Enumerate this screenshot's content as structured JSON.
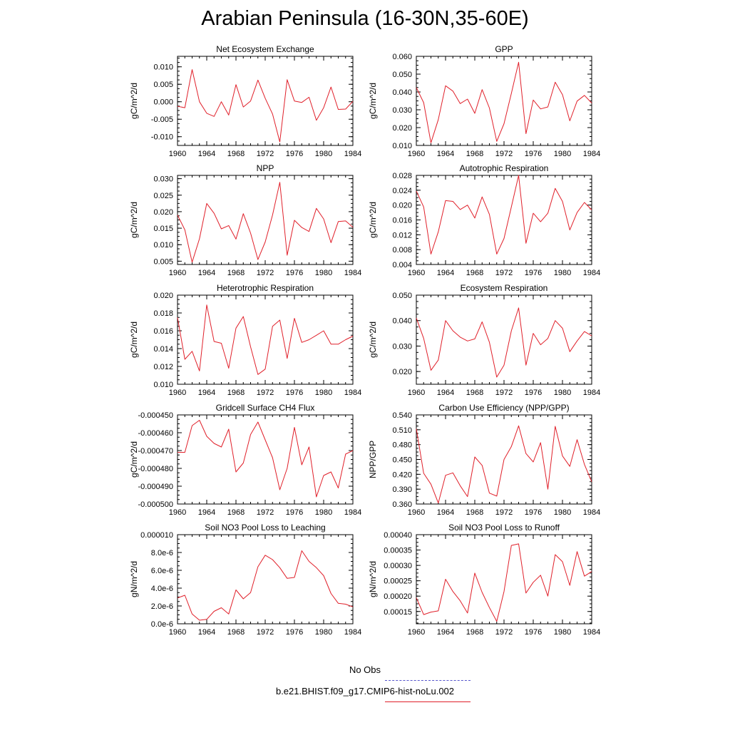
{
  "title": "Arabian Peninsula (16-30N,35-60E)",
  "x_tick_labels": [
    "1960",
    "1964",
    "1968",
    "1972",
    "1976",
    "1980",
    "1984"
  ],
  "legend": {
    "entries": [
      {
        "label": "No Obs",
        "color": "#5555cc",
        "style": "dashed"
      },
      {
        "label": "b.e21.BHIST.f09_g17.CMIP6-hist-noLu.002",
        "color": "#e0202a",
        "style": "solid"
      }
    ]
  },
  "chart_data": [
    {
      "type": "line",
      "title": "Net Ecosystem Exchange",
      "ylabel": "gC/m^2/d",
      "xlim": [
        1960,
        1984
      ],
      "ylim": [
        -0.0125,
        0.013
      ],
      "yticks": [
        -0.01,
        -0.005,
        0.0,
        0.005,
        0.01
      ],
      "ytick_labels": [
        "-0.010",
        "-0.005",
        "0.000",
        "0.005",
        "0.010"
      ],
      "series": [
        {
          "color": "#e0202a",
          "x": [
            1960,
            1961,
            1962,
            1963,
            1964,
            1965,
            1966,
            1967,
            1968,
            1969,
            1970,
            1971,
            1972,
            1973,
            1974,
            1975,
            1976,
            1977,
            1978,
            1979,
            1980,
            1981,
            1982,
            1983,
            1984
          ],
          "y": [
            -0.0013,
            -0.0017,
            0.0092,
            0.0,
            -0.0033,
            -0.0042,
            0.0,
            -0.0038,
            0.0049,
            -0.0015,
            0.0002,
            0.0062,
            0.001,
            -0.0035,
            -0.0115,
            0.0063,
            0.0002,
            -0.0002,
            0.0013,
            -0.0053,
            -0.0017,
            0.0042,
            -0.0022,
            -0.0021,
            0.0001
          ]
        }
      ]
    },
    {
      "type": "line",
      "title": "GPP",
      "ylabel": "gC/m^2/d",
      "xlim": [
        1960,
        1984
      ],
      "ylim": [
        0.01,
        0.06
      ],
      "yticks": [
        0.01,
        0.02,
        0.03,
        0.04,
        0.05,
        0.06
      ],
      "ytick_labels": [
        "0.010",
        "0.020",
        "0.030",
        "0.040",
        "0.050",
        "0.060"
      ],
      "series": [
        {
          "color": "#e0202a",
          "x": [
            1960,
            1961,
            1962,
            1963,
            1964,
            1965,
            1966,
            1967,
            1968,
            1969,
            1970,
            1971,
            1972,
            1973,
            1974,
            1975,
            1976,
            1977,
            1978,
            1979,
            1980,
            1981,
            1982,
            1983,
            1984
          ],
          "y": [
            0.0425,
            0.034,
            0.0115,
            0.0245,
            0.0435,
            0.0405,
            0.0335,
            0.036,
            0.028,
            0.0413,
            0.031,
            0.0123,
            0.0222,
            0.0392,
            0.0567,
            0.0166,
            0.0355,
            0.0305,
            0.0316,
            0.0455,
            0.0385,
            0.0238,
            0.0349,
            0.0381,
            0.0338
          ]
        }
      ]
    },
    {
      "type": "line",
      "title": "NPP",
      "ylabel": "gC/m^2/d",
      "xlim": [
        1960,
        1984
      ],
      "ylim": [
        0.004,
        0.031
      ],
      "yticks": [
        0.005,
        0.01,
        0.015,
        0.02,
        0.025,
        0.03
      ],
      "ytick_labels": [
        "0.005",
        "0.010",
        "0.015",
        "0.020",
        "0.025",
        "0.030"
      ],
      "series": [
        {
          "color": "#e0202a",
          "x": [
            1960,
            1961,
            1962,
            1963,
            1964,
            1965,
            1966,
            1967,
            1968,
            1969,
            1970,
            1971,
            1972,
            1973,
            1974,
            1975,
            1976,
            1977,
            1978,
            1979,
            1980,
            1981,
            1982,
            1983,
            1984
          ],
          "y": [
            0.019,
            0.0145,
            0.0047,
            0.0118,
            0.0225,
            0.0195,
            0.0148,
            0.0158,
            0.0117,
            0.0194,
            0.0135,
            0.0055,
            0.0108,
            0.019,
            0.0289,
            0.0068,
            0.0174,
            0.0152,
            0.014,
            0.021,
            0.0178,
            0.0106,
            0.017,
            0.0172,
            0.0153
          ]
        }
      ]
    },
    {
      "type": "line",
      "title": "Autotrophic Respiration",
      "ylabel": "gC/m^2/d",
      "xlim": [
        1960,
        1984
      ],
      "ylim": [
        0.004,
        0.028
      ],
      "yticks": [
        0.004,
        0.008,
        0.012,
        0.016,
        0.02,
        0.024,
        0.028
      ],
      "ytick_labels": [
        "0.004",
        "0.008",
        "0.012",
        "0.016",
        "0.020",
        "0.024",
        "0.028"
      ],
      "series": [
        {
          "color": "#e0202a",
          "x": [
            1960,
            1961,
            1962,
            1963,
            1964,
            1965,
            1966,
            1967,
            1968,
            1969,
            1970,
            1971,
            1972,
            1973,
            1974,
            1975,
            1976,
            1977,
            1978,
            1979,
            1980,
            1981,
            1982,
            1983,
            1984
          ],
          "y": [
            0.0238,
            0.0195,
            0.0068,
            0.0128,
            0.0212,
            0.021,
            0.0188,
            0.02,
            0.0165,
            0.0222,
            0.0175,
            0.0068,
            0.011,
            0.0195,
            0.028,
            0.0097,
            0.0178,
            0.0155,
            0.0178,
            0.0245,
            0.021,
            0.0133,
            0.018,
            0.0207,
            0.0187
          ]
        }
      ]
    },
    {
      "type": "line",
      "title": "Heterotrophic Respiration",
      "ylabel": "gC/m^2/d",
      "xlim": [
        1960,
        1984
      ],
      "ylim": [
        0.01,
        0.02
      ],
      "yticks": [
        0.01,
        0.012,
        0.014,
        0.016,
        0.018,
        0.02
      ],
      "ytick_labels": [
        "0.010",
        "0.012",
        "0.014",
        "0.016",
        "0.018",
        "0.020"
      ],
      "series": [
        {
          "color": "#e0202a",
          "x": [
            1960,
            1961,
            1962,
            1963,
            1964,
            1965,
            1966,
            1967,
            1968,
            1969,
            1970,
            1971,
            1972,
            1973,
            1974,
            1975,
            1976,
            1977,
            1978,
            1979,
            1980,
            1981,
            1982,
            1983,
            1984
          ],
          "y": [
            0.0175,
            0.0128,
            0.0137,
            0.0115,
            0.0189,
            0.0148,
            0.0146,
            0.0118,
            0.0163,
            0.0176,
            0.0142,
            0.0111,
            0.0117,
            0.0165,
            0.0172,
            0.0129,
            0.0174,
            0.0147,
            0.015,
            0.0155,
            0.016,
            0.0145,
            0.0145,
            0.015,
            0.0154
          ]
        }
      ]
    },
    {
      "type": "line",
      "title": "Ecosystem Respiration",
      "ylabel": "gC/m^2/d",
      "xlim": [
        1960,
        1984
      ],
      "ylim": [
        0.015,
        0.05
      ],
      "yticks": [
        0.02,
        0.03,
        0.04,
        0.05
      ],
      "ytick_labels": [
        "0.020",
        "0.030",
        "0.040",
        "0.050"
      ],
      "series": [
        {
          "color": "#e0202a",
          "x": [
            1960,
            1961,
            1962,
            1963,
            1964,
            1965,
            1966,
            1967,
            1968,
            1969,
            1970,
            1971,
            1972,
            1973,
            1974,
            1975,
            1976,
            1977,
            1978,
            1979,
            1980,
            1981,
            1982,
            1983,
            1984
          ],
          "y": [
            0.041,
            0.033,
            0.0205,
            0.0245,
            0.04,
            0.036,
            0.0335,
            0.032,
            0.0328,
            0.0395,
            0.0315,
            0.0178,
            0.0225,
            0.036,
            0.045,
            0.0225,
            0.035,
            0.0305,
            0.033,
            0.04,
            0.037,
            0.0278,
            0.032,
            0.0357,
            0.034
          ]
        }
      ]
    },
    {
      "type": "line",
      "title": "Gridcell Surface CH4 Flux",
      "ylabel": "gC/m^2/d",
      "xlim": [
        1960,
        1984
      ],
      "ylim": [
        -0.0005,
        -0.00045
      ],
      "yticks": [
        -0.0005,
        -0.00049,
        -0.00048,
        -0.00047,
        -0.00046,
        -0.00045
      ],
      "ytick_labels": [
        "-0.000500",
        "-0.000490",
        "-0.000480",
        "-0.000470",
        "-0.000460",
        "-0.000450"
      ],
      "series": [
        {
          "color": "#e0202a",
          "x": [
            1960,
            1961,
            1962,
            1963,
            1964,
            1965,
            1966,
            1967,
            1968,
            1969,
            1970,
            1971,
            1972,
            1973,
            1974,
            1975,
            1976,
            1977,
            1978,
            1979,
            1980,
            1981,
            1982,
            1983,
            1984
          ],
          "y": [
            -0.000471,
            -0.000471,
            -0.000456,
            -0.000453,
            -0.000462,
            -0.000466,
            -0.000468,
            -0.000458,
            -0.000482,
            -0.000477,
            -0.000461,
            -0.000454,
            -0.000464,
            -0.000474,
            -0.000492,
            -0.00048,
            -0.000457,
            -0.000478,
            -0.000468,
            -0.000496,
            -0.000484,
            -0.000482,
            -0.000491,
            -0.000472,
            -0.00047
          ]
        }
      ]
    },
    {
      "type": "line",
      "title": "Carbon Use Efficiency (NPP/GPP)",
      "ylabel": "NPP/GPP",
      "xlim": [
        1960,
        1984
      ],
      "ylim": [
        0.36,
        0.54
      ],
      "yticks": [
        0.36,
        0.39,
        0.42,
        0.45,
        0.48,
        0.51,
        0.54
      ],
      "ytick_labels": [
        "0.360",
        "0.390",
        "0.420",
        "0.450",
        "0.480",
        "0.510",
        "0.540"
      ],
      "series": [
        {
          "color": "#e0202a",
          "x": [
            1960,
            1961,
            1962,
            1963,
            1964,
            1965,
            1966,
            1967,
            1968,
            1969,
            1970,
            1971,
            1972,
            1973,
            1974,
            1975,
            1976,
            1977,
            1978,
            1979,
            1980,
            1981,
            1982,
            1983,
            1984
          ],
          "y": [
            0.512,
            0.422,
            0.4,
            0.362,
            0.418,
            0.423,
            0.397,
            0.375,
            0.455,
            0.438,
            0.382,
            0.376,
            0.45,
            0.476,
            0.518,
            0.462,
            0.445,
            0.484,
            0.39,
            0.517,
            0.457,
            0.436,
            0.49,
            0.44,
            0.405
          ]
        }
      ]
    },
    {
      "type": "line",
      "title": "Soil NO3 Pool Loss to Leaching",
      "ylabel": "gN/m^2/d",
      "xlim": [
        1960,
        1984
      ],
      "ylim": [
        0,
        1e-05
      ],
      "yticks": [
        0,
        2e-06,
        4e-06,
        6e-06,
        8e-06,
        1e-05
      ],
      "ytick_labels": [
        "0.0e-6",
        "2.0e-6",
        "4.0e-6",
        "6.0e-6",
        "8.0e-6",
        "0.000010"
      ],
      "series": [
        {
          "color": "#e0202a",
          "x": [
            1960,
            1961,
            1962,
            1963,
            1964,
            1965,
            1966,
            1967,
            1968,
            1969,
            1970,
            1971,
            1972,
            1973,
            1974,
            1975,
            1976,
            1977,
            1978,
            1979,
            1980,
            1981,
            1982,
            1983,
            1984
          ],
          "y": [
            2.9e-06,
            3.2e-06,
            1.1e-06,
            4e-07,
            5e-07,
            1.4e-06,
            1.8e-06,
            1.1e-06,
            3.8e-06,
            2.8e-06,
            3.5e-06,
            6.4e-06,
            7.7e-06,
            7.2e-06,
            6.3e-06,
            5.1e-06,
            5.2e-06,
            8.2e-06,
            7e-06,
            6.3e-06,
            5.4e-06,
            3.4e-06,
            2.3e-06,
            2.2e-06,
            1.9e-06
          ]
        }
      ]
    },
    {
      "type": "line",
      "title": "Soil NO3 Pool Loss to Runoff",
      "ylabel": "gN/m^2/d",
      "xlim": [
        1960,
        1984
      ],
      "ylim": [
        0.00011,
        0.0004
      ],
      "yticks": [
        0.00015,
        0.0002,
        0.00025,
        0.0003,
        0.00035,
        0.0004
      ],
      "ytick_labels": [
        "0.00015",
        "0.00020",
        "0.00025",
        "0.00030",
        "0.00035",
        "0.00040"
      ],
      "series": [
        {
          "color": "#e0202a",
          "x": [
            1960,
            1961,
            1962,
            1963,
            1964,
            1965,
            1966,
            1967,
            1968,
            1969,
            1970,
            1971,
            1972,
            1973,
            1974,
            1975,
            1976,
            1977,
            1978,
            1979,
            1980,
            1981,
            1982,
            1983,
            1984
          ],
          "y": [
            0.000195,
            0.00014,
            0.000148,
            0.000152,
            0.000255,
            0.000215,
            0.000185,
            0.000145,
            0.000275,
            0.000212,
            0.000163,
            0.000118,
            0.000215,
            0.000365,
            0.00037,
            0.00021,
            0.000245,
            0.000268,
            0.0002,
            0.000335,
            0.000312,
            0.000235,
            0.000345,
            0.000265,
            0.00028
          ]
        }
      ]
    }
  ]
}
